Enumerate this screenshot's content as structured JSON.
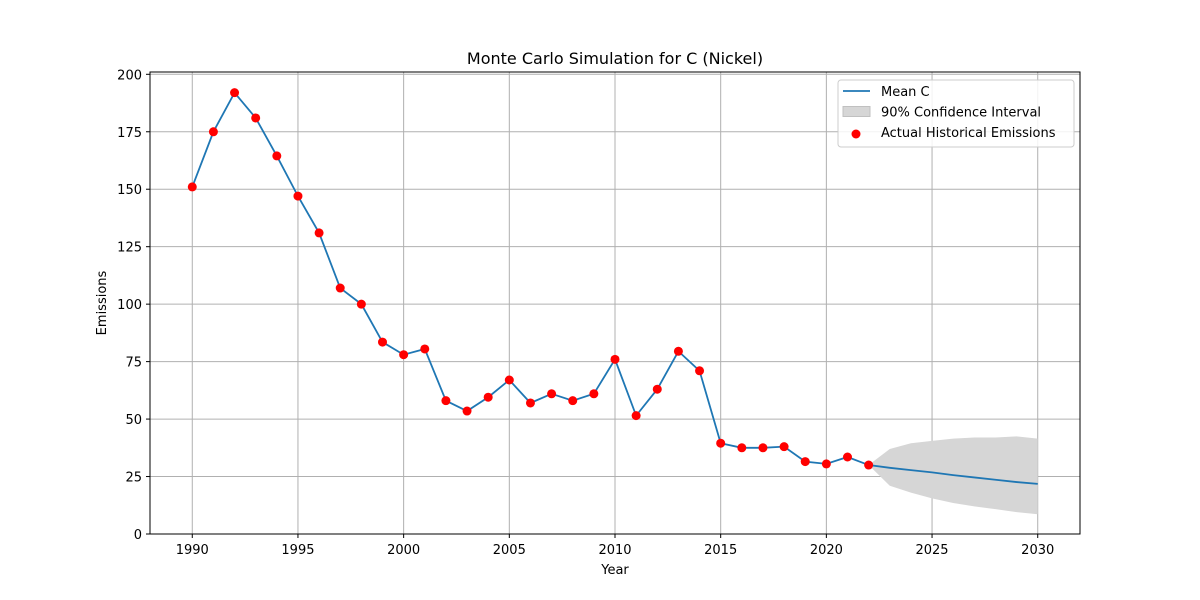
{
  "chart_data": {
    "type": "line",
    "title": "Monte Carlo Simulation for C (Nickel)",
    "xlabel": "Year",
    "ylabel": "Emissions",
    "xlim": [
      1988,
      2032
    ],
    "ylim": [
      0,
      201
    ],
    "xticks": [
      1990,
      1995,
      2000,
      2005,
      2010,
      2015,
      2020,
      2025,
      2030
    ],
    "yticks": [
      0,
      25,
      50,
      75,
      100,
      125,
      150,
      175,
      200
    ],
    "grid": true,
    "legend_position": "top-right",
    "legend": [
      {
        "label": "Mean C",
        "kind": "line",
        "color": "#1f77b4"
      },
      {
        "label": "90% Confidence Interval",
        "kind": "band",
        "color": "#d6d6d6"
      },
      {
        "label": "Actual Historical Emissions",
        "kind": "scatter",
        "color": "#ff0000"
      }
    ],
    "series": [
      {
        "name": "Mean C",
        "type": "line",
        "color": "#1f77b4",
        "x": [
          1990,
          1991,
          1992,
          1993,
          1994,
          1995,
          1996,
          1997,
          1998,
          1999,
          2000,
          2001,
          2002,
          2003,
          2004,
          2005,
          2006,
          2007,
          2008,
          2009,
          2010,
          2011,
          2012,
          2013,
          2014,
          2015,
          2016,
          2017,
          2018,
          2019,
          2020,
          2021,
          2022,
          2023,
          2024,
          2025,
          2026,
          2027,
          2028,
          2029,
          2030
        ],
        "y": [
          151,
          175,
          192,
          181,
          164.5,
          147,
          131,
          107,
          100,
          83.5,
          78,
          80.5,
          58,
          53.5,
          59.5,
          67,
          57,
          61,
          58,
          61,
          76,
          51.5,
          63,
          79.5,
          71,
          39.5,
          37.5,
          37.5,
          38,
          31.5,
          30.5,
          33.5,
          30,
          28.8,
          27.8,
          26.8,
          25.6,
          24.6,
          23.6,
          22.6,
          21.8
        ]
      },
      {
        "name": "90% Confidence Interval",
        "type": "band",
        "color": "#d6d6d6",
        "x": [
          2022,
          2023,
          2024,
          2025,
          2026,
          2027,
          2028,
          2029,
          2030
        ],
        "lower": [
          30,
          21,
          18,
          15.5,
          13.5,
          12,
          10.8,
          9.5,
          8.6
        ],
        "upper": [
          30,
          37,
          39.5,
          40.5,
          41.5,
          42,
          42,
          42.5,
          41.5
        ]
      },
      {
        "name": "Actual Historical Emissions",
        "type": "scatter",
        "color": "#ff0000",
        "x": [
          1990,
          1991,
          1992,
          1993,
          1994,
          1995,
          1996,
          1997,
          1998,
          1999,
          2000,
          2001,
          2002,
          2003,
          2004,
          2005,
          2006,
          2007,
          2008,
          2009,
          2010,
          2011,
          2012,
          2013,
          2014,
          2015,
          2016,
          2017,
          2018,
          2019,
          2020,
          2021,
          2022
        ],
        "y": [
          151,
          175,
          192,
          181,
          164.5,
          147,
          131,
          107,
          100,
          83.5,
          78,
          80.5,
          58,
          53.5,
          59.5,
          67,
          57,
          61,
          58,
          61,
          76,
          51.5,
          63,
          79.5,
          71,
          39.5,
          37.5,
          37.5,
          38,
          31.5,
          30.5,
          33.5,
          30
        ]
      }
    ]
  }
}
